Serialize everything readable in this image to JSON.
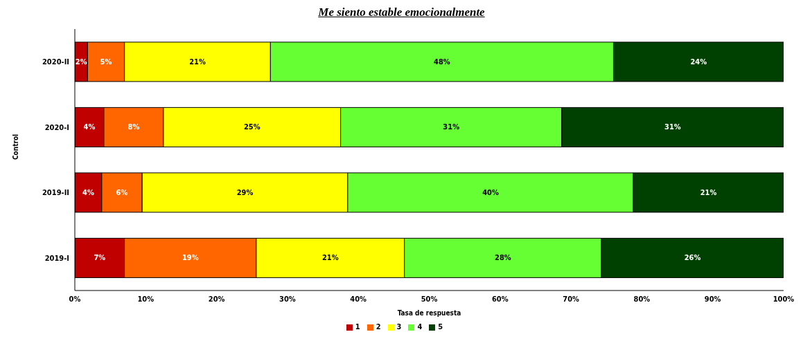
{
  "chart_data": {
    "type": "bar",
    "orientation": "horizontal",
    "stacked": true,
    "title": "Me siento estable emocionalmente",
    "xlabel": "Tasa de respuesta",
    "ylabel": "Control",
    "categories": [
      "2020-II",
      "2020-I",
      "2019-II",
      "2019-I"
    ],
    "series": [
      {
        "name": "1",
        "color": "#c00000",
        "values": [
          1.8,
          4.1,
          3.8,
          7.0
        ],
        "value_labels": [
          "2%",
          "4%",
          "4%",
          "7%"
        ]
      },
      {
        "name": "2",
        "color": "#ff6600",
        "values": [
          5.2,
          8.4,
          5.7,
          18.6
        ],
        "value_labels": [
          "5%",
          "8%",
          "6%",
          "19%"
        ]
      },
      {
        "name": "3",
        "color": "#ffff00",
        "values": [
          20.6,
          25.0,
          29.0,
          20.9
        ],
        "value_labels": [
          "21%",
          "25%",
          "29%",
          "21%"
        ]
      },
      {
        "name": "4",
        "color": "#66ff33",
        "values": [
          48.4,
          31.2,
          40.3,
          27.8
        ],
        "value_labels": [
          "48%",
          "31%",
          "40%",
          "28%"
        ]
      },
      {
        "name": "5",
        "color": "#004000",
        "values": [
          24.0,
          31.3,
          21.2,
          25.7
        ],
        "value_labels": [
          "24%",
          "31%",
          "21%",
          "26%"
        ]
      }
    ],
    "xlim": [
      0,
      100
    ],
    "xticks": [
      {
        "value": 0,
        "label": "0%"
      },
      {
        "value": 10,
        "label": "10%"
      },
      {
        "value": 20,
        "label": "20%"
      },
      {
        "value": 30,
        "label": "30%"
      },
      {
        "value": 40,
        "label": "40%"
      },
      {
        "value": 50,
        "label": "50%"
      },
      {
        "value": 60,
        "label": "60%"
      },
      {
        "value": 70,
        "label": "70%"
      },
      {
        "value": 80,
        "label": "80%"
      },
      {
        "value": 90,
        "label": "90%"
      },
      {
        "value": 100,
        "label": "100%"
      }
    ],
    "grid": false,
    "legend": "bottom"
  }
}
